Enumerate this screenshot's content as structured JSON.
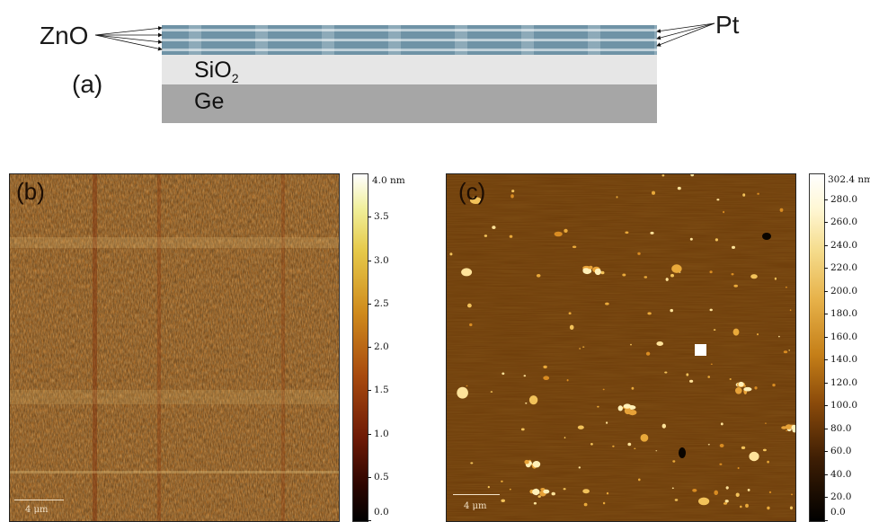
{
  "panel_a": {
    "label": "(a)",
    "zno_label": "ZnO",
    "pt_label": "Pt",
    "sio2_label_main": "SiO",
    "sio2_label_sub": "2",
    "ge_label": "Ge"
  },
  "panel_b": {
    "label": "(b)",
    "scale_bar": "4 μm",
    "colorbar": {
      "unit_top": "4.0 nm",
      "ticks": [
        "3.5",
        "3.0",
        "2.5",
        "2.0",
        "1.5",
        "1.0",
        "0.5",
        "0.0"
      ],
      "max": 4.0,
      "min": 0.0
    }
  },
  "panel_c": {
    "label": "(c)",
    "scale_bar": "4 μm",
    "colorbar": {
      "unit_top": "302.4 nm",
      "ticks": [
        "280.0",
        "260.0",
        "240.0",
        "220.0",
        "200.0",
        "180.0",
        "160.0",
        "140.0",
        "120.0",
        "100.0",
        "80.0",
        "60.0",
        "40.0",
        "20.0",
        "0.0"
      ],
      "max": 302.4,
      "min": 0.0
    }
  },
  "colors": {
    "zno_layer": "#6f93a6",
    "sio2_layer": "#e6e6e6",
    "ge_layer": "#a6a6a6",
    "afm_c_background": "#6b3a08"
  }
}
